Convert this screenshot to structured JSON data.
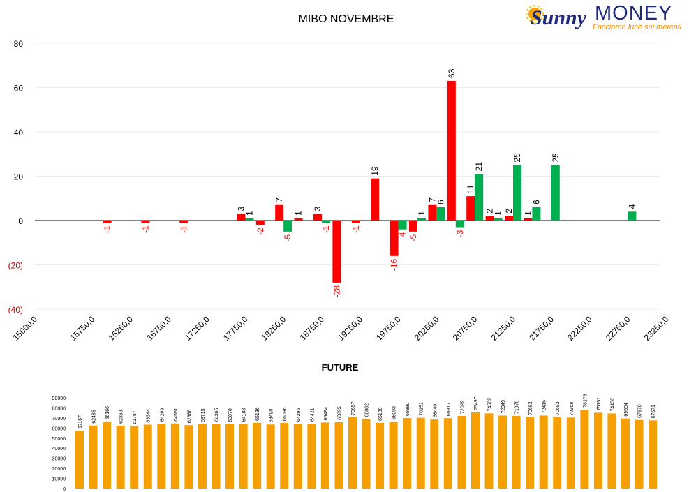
{
  "logo": {
    "word1": "Sunny",
    "word2": "MONEY",
    "tagline": "Facciamo luce sui mercati"
  },
  "colors": {
    "red": "#ff0000",
    "green": "#00b050",
    "orange": "#f59f00",
    "negative_tick": "#c00000"
  },
  "chart_data": [
    {
      "type": "bar",
      "title": "MIBO NOVEMBRE",
      "xlabel": "",
      "ylabel": "",
      "ylim": [
        -40,
        80
      ],
      "yticks": [
        80,
        60,
        40,
        20,
        0,
        -20,
        -40
      ],
      "ytick_labels": [
        "80",
        "60",
        "40",
        "20",
        "0",
        "(20)",
        "(40)"
      ],
      "strike_step": 250,
      "strike_start": 15000,
      "x_tick_labels": [
        "15000,0",
        "15750,0",
        "16250,0",
        "16750,0",
        "17250,0",
        "17750,0",
        "18250,0",
        "18750,0",
        "19250,0",
        "19750,0",
        "20250,0",
        "20750,0",
        "21250,0",
        "21750,0",
        "22250,0",
        "22750,0",
        "23250,0"
      ],
      "x_tick_values": [
        15000,
        15750,
        16250,
        16750,
        17250,
        17750,
        18250,
        18750,
        19250,
        19750,
        20250,
        20750,
        21250,
        21750,
        22250,
        22750,
        23250
      ],
      "grid": true,
      "series": [
        {
          "color": "red",
          "points": [
            {
              "x": 16000,
              "y": -1,
              "label": "-1"
            },
            {
              "x": 16500,
              "y": -1,
              "label": "-1"
            },
            {
              "x": 17000,
              "y": -1,
              "label": "-1"
            },
            {
              "x": 17750,
              "y": 3,
              "label": "3"
            },
            {
              "x": 18000,
              "y": -2,
              "label": "-2"
            },
            {
              "x": 18250,
              "y": 7,
              "label": "7"
            },
            {
              "x": 18500,
              "y": 1,
              "label": "1"
            },
            {
              "x": 18750,
              "y": 3,
              "label": "3"
            },
            {
              "x": 19000,
              "y": -28,
              "label": "-28"
            },
            {
              "x": 19250,
              "y": -1,
              "label": "-1"
            },
            {
              "x": 19500,
              "y": 19,
              "label": "19"
            },
            {
              "x": 19750,
              "y": -16,
              "label": "-16"
            },
            {
              "x": 20000,
              "y": -5,
              "label": "-5"
            },
            {
              "x": 20250,
              "y": 7,
              "label": "7"
            },
            {
              "x": 20500,
              "y": 63,
              "label": "63"
            },
            {
              "x": 20750,
              "y": 11,
              "label": "11"
            },
            {
              "x": 21000,
              "y": 2,
              "label": "2"
            },
            {
              "x": 21250,
              "y": 2,
              "label": "2"
            },
            {
              "x": 21500,
              "y": 1,
              "label": "1"
            }
          ]
        },
        {
          "color": "green",
          "points": [
            {
              "x": 17750,
              "y": 1,
              "label": "1"
            },
            {
              "x": 18250,
              "y": -5,
              "label": "-5"
            },
            {
              "x": 18750,
              "y": -1,
              "label": "-1"
            },
            {
              "x": 19750,
              "y": -4,
              "label": "-4"
            },
            {
              "x": 20000,
              "y": 1,
              "label": "1"
            },
            {
              "x": 20250,
              "y": 6,
              "label": "6"
            },
            {
              "x": 20500,
              "y": -3,
              "label": "-3"
            },
            {
              "x": 20750,
              "y": 21,
              "label": "21"
            },
            {
              "x": 21000,
              "y": 1,
              "label": "1"
            },
            {
              "x": 21250,
              "y": 25,
              "label": "25"
            },
            {
              "x": 21500,
              "y": 6,
              "label": "6"
            },
            {
              "x": 21750,
              "y": 25,
              "label": "25"
            },
            {
              "x": 22750,
              "y": 4,
              "label": "4"
            }
          ]
        }
      ]
    },
    {
      "type": "bar",
      "title": "FUTURE",
      "xlabel": "",
      "ylabel": "",
      "ylim": [
        0,
        90000
      ],
      "yticks": [
        90000,
        80000,
        70000,
        60000,
        50000,
        40000,
        30000,
        20000,
        10000,
        0
      ],
      "ytick_labels": [
        "90000",
        "80000",
        "70000",
        "60000",
        "50000",
        "40000",
        "30000",
        "20000",
        "10000",
        "0"
      ],
      "color": "orange",
      "values": [
        57167,
        62486,
        66166,
        62369,
        61787,
        63344,
        64269,
        64551,
        62888,
        63715,
        64365,
        63870,
        64188,
        65136,
        63498,
        65096,
        64296,
        64421,
        65494,
        65895,
        70657,
        68882,
        65130,
        66093,
        69890,
        70152,
        68440,
        69817,
        72029,
        75497,
        74502,
        72349,
        71979,
        70683,
        72415,
        70683,
        70368,
        78276,
        75151,
        74436,
        69504,
        67978,
        67571
      ],
      "value_labels": [
        "57167",
        "62486",
        "66166",
        "62369",
        "61787",
        "63344",
        "64269",
        "64551",
        "62888",
        "63715",
        "64365",
        "63870",
        "64188",
        "65136",
        "63498",
        "65096",
        "64296",
        "64421",
        "65494",
        "65895",
        "70657",
        "68882",
        "65130",
        "66093",
        "69890",
        "70152",
        "68440",
        "69817",
        "72029",
        "75497",
        "74502",
        "72349",
        "71979",
        "70683",
        "72415",
        "70683",
        "70368",
        "78276",
        "75151",
        "74436",
        "69504",
        "67978",
        "67571"
      ]
    }
  ]
}
